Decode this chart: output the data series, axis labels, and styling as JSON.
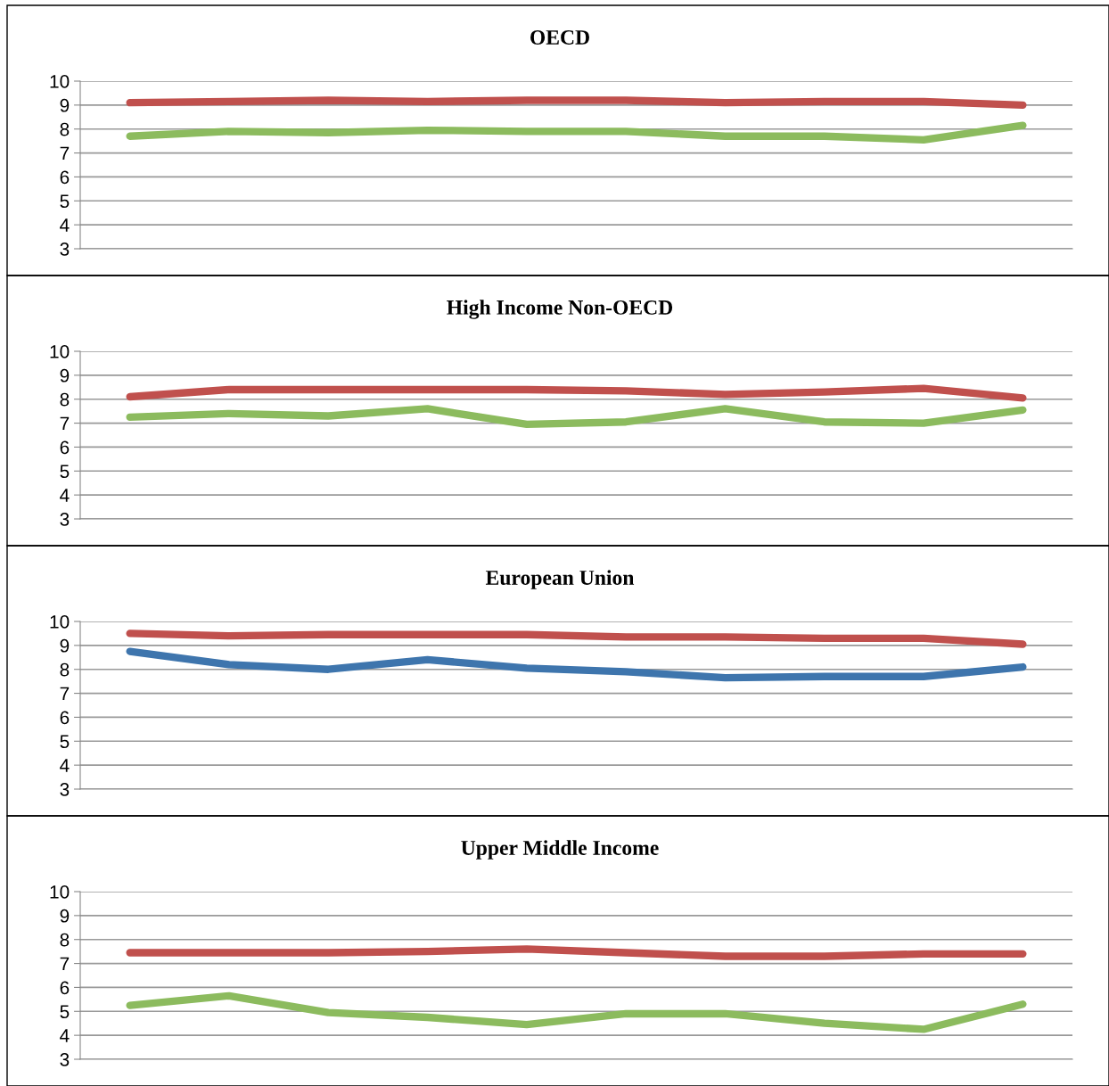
{
  "chart_data": [
    {
      "type": "line",
      "title": "OECD",
      "categories": [
        null,
        null,
        null,
        null,
        null,
        null,
        null,
        null,
        null,
        null
      ],
      "ylim": [
        3,
        10
      ],
      "yticks": [
        3,
        4,
        5,
        6,
        7,
        8,
        9,
        10
      ],
      "grid": "y",
      "legend": false,
      "tick_labels": "y",
      "marker": "none",
      "line_style": "solid",
      "series": [
        {
          "color": "#c0504d",
          "values": [
            9.1,
            9.15,
            9.2,
            9.15,
            9.2,
            9.2,
            9.1,
            9.15,
            9.15,
            9.0
          ]
        },
        {
          "color": "#8cbb5e",
          "values": [
            7.7,
            7.9,
            7.85,
            7.95,
            7.9,
            7.9,
            7.7,
            7.7,
            7.55,
            8.15
          ]
        }
      ]
    },
    {
      "type": "line",
      "title": "High Income Non-OECD",
      "categories": [
        null,
        null,
        null,
        null,
        null,
        null,
        null,
        null,
        null,
        null
      ],
      "ylim": [
        3,
        10
      ],
      "yticks": [
        3,
        4,
        5,
        6,
        7,
        8,
        9,
        10
      ],
      "grid": "y",
      "legend": false,
      "tick_labels": "y",
      "marker": "none",
      "line_style": "solid",
      "series": [
        {
          "color": "#c0504d",
          "values": [
            8.1,
            8.4,
            8.4,
            8.4,
            8.4,
            8.35,
            8.2,
            8.3,
            8.45,
            8.05
          ]
        },
        {
          "color": "#8cbb5e",
          "values": [
            7.25,
            7.4,
            7.3,
            7.6,
            6.95,
            7.05,
            7.6,
            7.05,
            7.0,
            7.55
          ]
        }
      ]
    },
    {
      "type": "line",
      "title": "European Union",
      "categories": [
        null,
        null,
        null,
        null,
        null,
        null,
        null,
        null,
        null,
        null
      ],
      "ylim": [
        3,
        10
      ],
      "yticks": [
        3,
        4,
        5,
        6,
        7,
        8,
        9,
        10
      ],
      "grid": "y",
      "legend": false,
      "tick_labels": "y",
      "marker": "none",
      "line_style": "solid",
      "series": [
        {
          "color": "#c0504d",
          "values": [
            9.5,
            9.4,
            9.45,
            9.45,
            9.45,
            9.35,
            9.35,
            9.3,
            9.3,
            9.05
          ]
        },
        {
          "color": "#3e75ad",
          "values": [
            8.75,
            8.2,
            8.0,
            8.4,
            8.05,
            7.9,
            7.65,
            7.7,
            7.7,
            8.1
          ]
        }
      ]
    },
    {
      "type": "line",
      "title": "Upper Middle Income",
      "categories": [
        null,
        null,
        null,
        null,
        null,
        null,
        null,
        null,
        null,
        null
      ],
      "ylim": [
        3,
        10
      ],
      "yticks": [
        3,
        4,
        5,
        6,
        7,
        8,
        9,
        10
      ],
      "grid": "y",
      "legend": false,
      "tick_labels": "y",
      "marker": "none",
      "line_style": "solid",
      "series": [
        {
          "color": "#c0504d",
          "values": [
            7.45,
            7.45,
            7.45,
            7.5,
            7.6,
            7.45,
            7.3,
            7.3,
            7.4,
            7.4
          ]
        },
        {
          "color": "#8cbb5e",
          "values": [
            5.25,
            5.65,
            4.95,
            4.75,
            4.45,
            4.9,
            4.9,
            4.5,
            4.25,
            5.3
          ]
        }
      ]
    }
  ]
}
